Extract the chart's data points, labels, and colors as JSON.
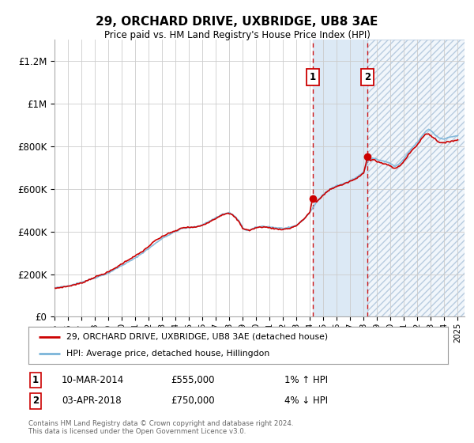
{
  "title": "29, ORCHARD DRIVE, UXBRIDGE, UB8 3AE",
  "subtitle": "Price paid vs. HM Land Registry's House Price Index (HPI)",
  "ylabel_ticks": [
    "£0",
    "£200K",
    "£400K",
    "£600K",
    "£800K",
    "£1M",
    "£1.2M"
  ],
  "ytick_values": [
    0,
    200000,
    400000,
    600000,
    800000,
    1000000,
    1200000
  ],
  "ylim": [
    0,
    1300000
  ],
  "xlim_start": 1995,
  "xlim_end": 2025.5,
  "purchase1": {
    "date_num": 2014.2,
    "price": 555000,
    "label": "1",
    "date_str": "10-MAR-2014",
    "pct": "1%",
    "dir": "↑"
  },
  "purchase2": {
    "date_num": 2018.27,
    "price": 750000,
    "label": "2",
    "date_str": "03-APR-2018",
    "pct": "4%",
    "dir": "↓"
  },
  "hpi_line_color": "#7ab4d8",
  "price_line_color": "#cc0000",
  "marker_color": "#cc0000",
  "shaded_region_color": "#dce9f5",
  "dashed_line_color": "#cc0000",
  "legend_label1": "29, ORCHARD DRIVE, UXBRIDGE, UB8 3AE (detached house)",
  "legend_label2": "HPI: Average price, detached house, Hillingdon",
  "footer": "Contains HM Land Registry data © Crown copyright and database right 2024.\nThis data is licensed under the Open Government Licence v3.0.",
  "background_color": "#ffffff",
  "grid_color": "#cccccc"
}
